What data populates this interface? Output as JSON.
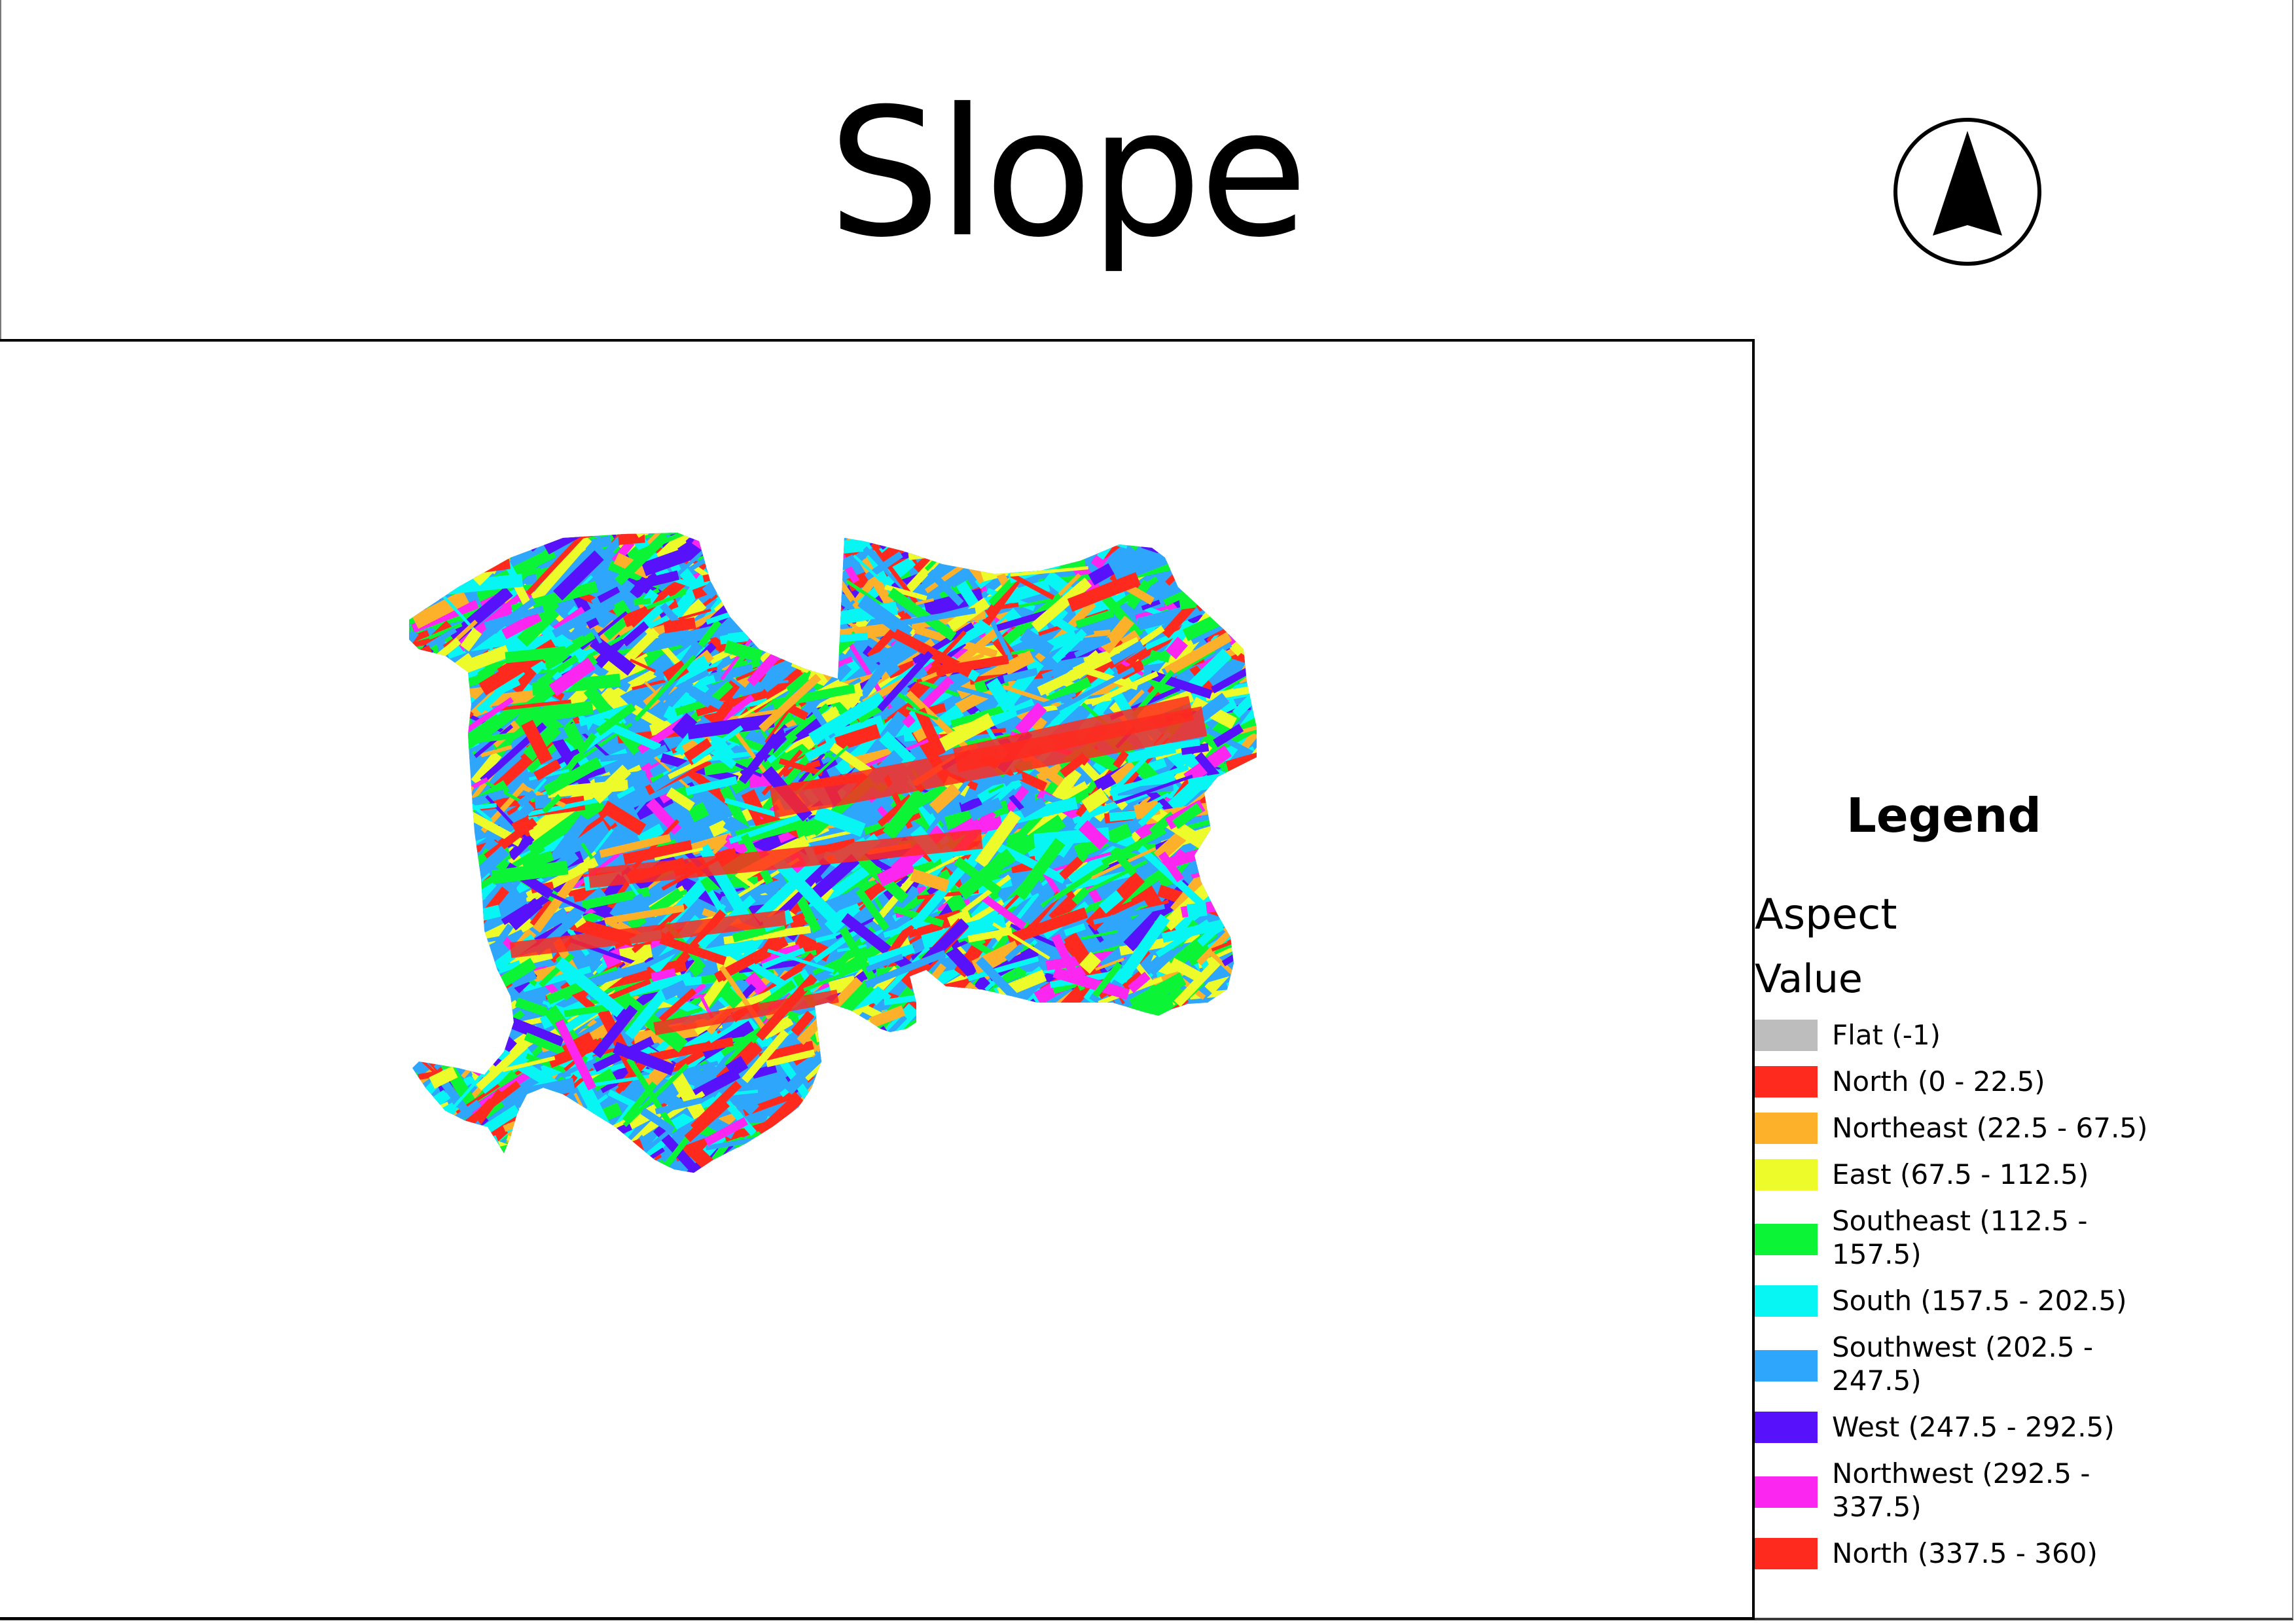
{
  "title": "Slope",
  "north_arrow_icon": "north-arrow-icon",
  "legend": {
    "title": "Legend",
    "layer_name": "Aspect",
    "field_name": "Value",
    "items": [
      {
        "label": "Flat (-1)",
        "color": "#bdbdbd"
      },
      {
        "label": "North (0 - 22.5)",
        "color": "#ff2a1e"
      },
      {
        "label": "Northeast (22.5 - 67.5)",
        "color": "#fdb12a"
      },
      {
        "label": "East (67.5 - 112.5)",
        "color": "#eefb2a"
      },
      {
        "label": "Southeast (112.5 - 157.5)",
        "color": "#0cf436"
      },
      {
        "label": "South (157.5 - 202.5)",
        "color": "#08f6f3"
      },
      {
        "label": "Southwest (202.5 - 247.5)",
        "color": "#2ea6fb"
      },
      {
        "label": "West (247.5 - 292.5)",
        "color": "#5812fb"
      },
      {
        "label": "Northwest (292.5 - 337.5)",
        "color": "#fb27f1"
      },
      {
        "label": "North (337.5 - 360)",
        "color": "#ff2a1e"
      }
    ]
  }
}
